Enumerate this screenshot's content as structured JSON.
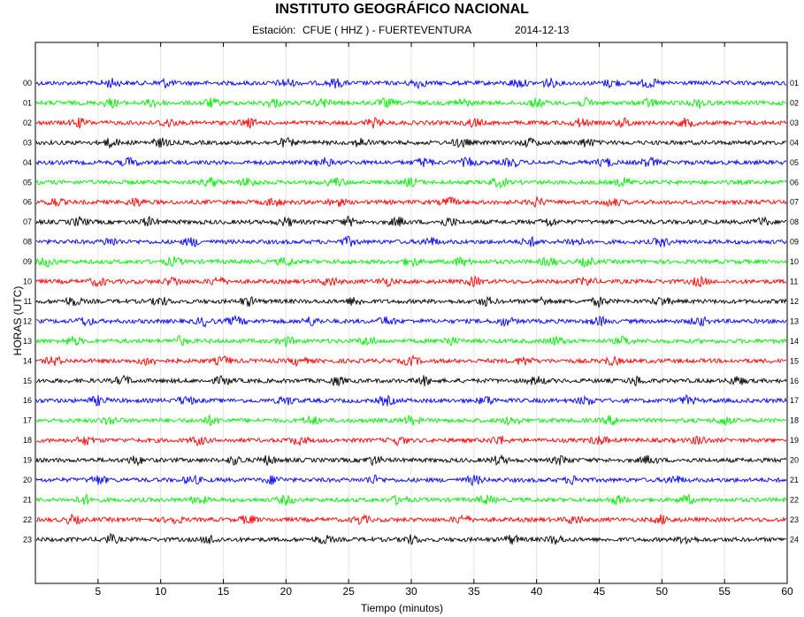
{
  "header": {
    "title": "INSTITUTO GEOGRÁFICO NACIONAL",
    "station_label": "Estación:",
    "station": "CFUE ( HHZ ) - FUERTEVENTURA",
    "date": "2014-12-13"
  },
  "chart_data": {
    "type": "line",
    "title": "INSTITUTO GEOGRÁFICO NACIONAL",
    "xlabel": "Tiempo (minutos)",
    "ylabel": "HORAS (UTC)",
    "xlim": [
      0,
      60
    ],
    "xticks": [
      5,
      10,
      15,
      20,
      25,
      30,
      35,
      40,
      45,
      50,
      55,
      60
    ],
    "grid": true,
    "left_hour_labels": [
      "00",
      "01",
      "02",
      "03",
      "04",
      "05",
      "06",
      "07",
      "08",
      "09",
      "10",
      "11",
      "12",
      "13",
      "14",
      "15",
      "16",
      "17",
      "18",
      "19",
      "20",
      "21",
      "22",
      "23"
    ],
    "right_hour_labels": [
      "01",
      "02",
      "03",
      "04",
      "05",
      "06",
      "07",
      "08",
      "09",
      "10",
      "11",
      "12",
      "13",
      "14",
      "15",
      "16",
      "17",
      "18",
      "19",
      "20",
      "21",
      "22",
      "23",
      "24"
    ],
    "trace_colors": [
      "#0000ff",
      "#00ee00",
      "#ff0000",
      "#000000"
    ],
    "series": [
      {
        "hour": "00",
        "events": [
          6,
          10.3,
          20,
          24,
          30.5,
          38.5,
          41,
          46,
          49
        ]
      },
      {
        "hour": "01",
        "events": [
          6,
          9.5,
          14,
          19,
          23,
          28,
          34,
          40,
          44,
          49,
          53
        ]
      },
      {
        "hour": "02",
        "events": [
          3.5,
          10.5,
          17,
          27,
          35,
          43.5,
          47,
          52
        ]
      },
      {
        "hour": "03",
        "events": [
          6,
          10,
          20,
          26,
          34,
          39.5,
          44
        ]
      },
      {
        "hour": "04",
        "events": [
          7.5,
          23,
          31,
          34.5,
          38,
          45.5,
          49
        ]
      },
      {
        "hour": "05",
        "events": [
          14,
          17,
          24,
          30,
          37,
          47
        ]
      },
      {
        "hour": "06",
        "events": [
          1.5,
          8,
          19,
          24,
          33,
          40,
          46
        ]
      },
      {
        "hour": "07",
        "events": [
          3.5,
          9,
          20,
          25,
          29,
          33,
          41,
          58
        ]
      },
      {
        "hour": "08",
        "events": [
          6,
          12.5,
          25,
          31.5,
          39.5,
          43,
          50
        ]
      },
      {
        "hour": "09",
        "events": [
          1,
          11,
          20,
          30,
          34,
          41,
          44
        ]
      },
      {
        "hour": "10",
        "events": [
          5,
          11,
          14.5,
          23.5,
          28,
          35,
          44,
          53
        ]
      },
      {
        "hour": "11",
        "events": [
          3,
          10,
          17,
          25.5,
          36,
          40.5,
          45,
          50
        ]
      },
      {
        "hour": "12",
        "events": [
          4,
          13.5,
          16,
          22,
          28,
          37.5,
          45,
          53
        ]
      },
      {
        "hour": "13",
        "events": [
          3,
          11.5,
          20,
          26.5,
          33,
          41.5,
          47
        ]
      },
      {
        "hour": "14",
        "events": [
          1.5,
          9,
          15,
          21,
          30,
          39,
          46
        ]
      },
      {
        "hour": "15",
        "events": [
          7,
          15,
          24,
          31,
          40,
          48,
          56
        ]
      },
      {
        "hour": "16",
        "events": [
          5,
          12,
          20,
          28,
          36,
          44,
          52
        ]
      },
      {
        "hour": "17",
        "events": [
          6,
          14,
          22,
          30,
          38,
          46,
          55
        ]
      },
      {
        "hour": "18",
        "events": [
          4,
          13,
          21,
          29,
          37,
          45,
          53
        ]
      },
      {
        "hour": "19",
        "events": [
          8,
          16,
          18.5,
          27,
          37,
          42,
          49
        ]
      },
      {
        "hour": "20",
        "events": [
          5,
          12.5,
          19,
          27,
          35,
          43,
          51
        ]
      },
      {
        "hour": "21",
        "events": [
          4,
          13,
          20,
          29,
          36,
          46.5,
          52
        ]
      },
      {
        "hour": "22",
        "events": [
          3,
          11,
          17,
          26,
          34,
          43,
          50
        ]
      },
      {
        "hour": "23",
        "events": [
          6,
          14,
          23,
          30,
          38,
          41.5,
          52
        ]
      }
    ]
  }
}
